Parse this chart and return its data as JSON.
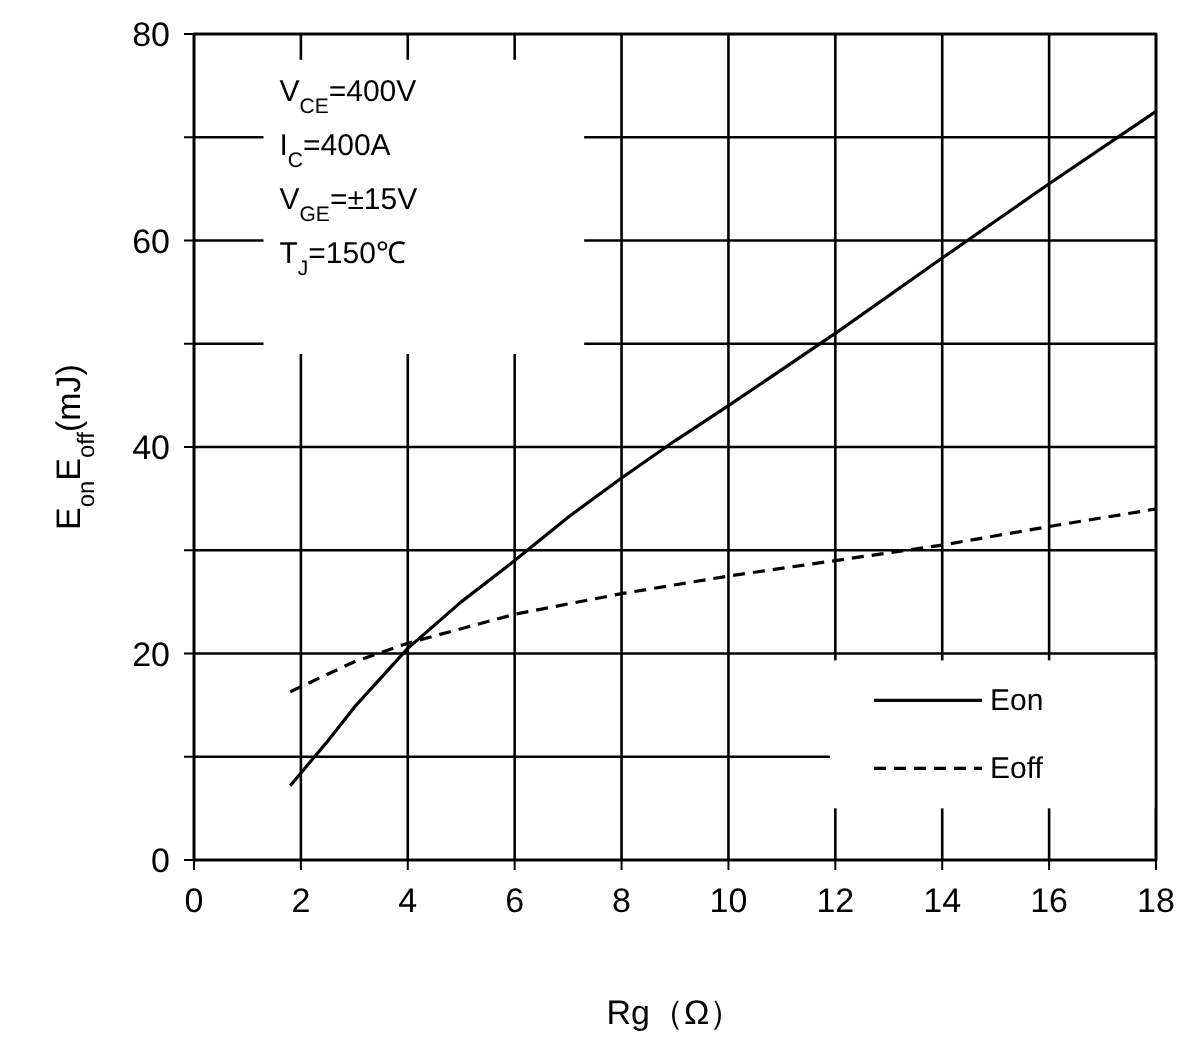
{
  "chart_data": {
    "type": "line",
    "xlabel": "Rg（Ω）",
    "ylabel": "E$_{on}$E$_{off}$(mJ)",
    "xlim": [
      0,
      18
    ],
    "xticks": [
      0,
      2,
      4,
      6,
      8,
      10,
      12,
      14,
      16,
      18
    ],
    "ylim": [
      0,
      80
    ],
    "yticks": [
      0,
      {
        "value": 10,
        "label": null
      },
      20,
      {
        "value": 30,
        "label": null
      },
      40,
      {
        "value": 50,
        "label": null
      },
      60,
      {
        "value": 70,
        "label": null
      },
      80
    ],
    "grid": true,
    "legend": "bottom right",
    "series": [
      {
        "name": "Eon",
        "color": "#000000",
        "line_style": "solid",
        "x": [
          1.8,
          2.5,
          3,
          4,
          5,
          6,
          7,
          8,
          9,
          10,
          12,
          14,
          16,
          18
        ],
        "values": [
          7.2,
          11.5,
          14.8,
          20.5,
          25,
          29,
          33.2,
          37,
          40.6,
          44,
          51,
          58.3,
          65.5,
          72.5
        ]
      },
      {
        "name": "Eoff",
        "color": "#000000",
        "line_style": "dashed",
        "x": [
          1.8,
          3,
          4,
          6,
          8,
          10,
          12,
          14,
          16,
          18
        ],
        "values": [
          16.3,
          19.2,
          21,
          23.8,
          25.8,
          27.5,
          29,
          30.5,
          32.3,
          34
        ]
      }
    ],
    "annotations": [
      "V$_{CE}$=400V",
      "I$_{C}$=400A",
      "V$_{GE}$=±15V",
      "T$_{J}$=150℃"
    ]
  }
}
